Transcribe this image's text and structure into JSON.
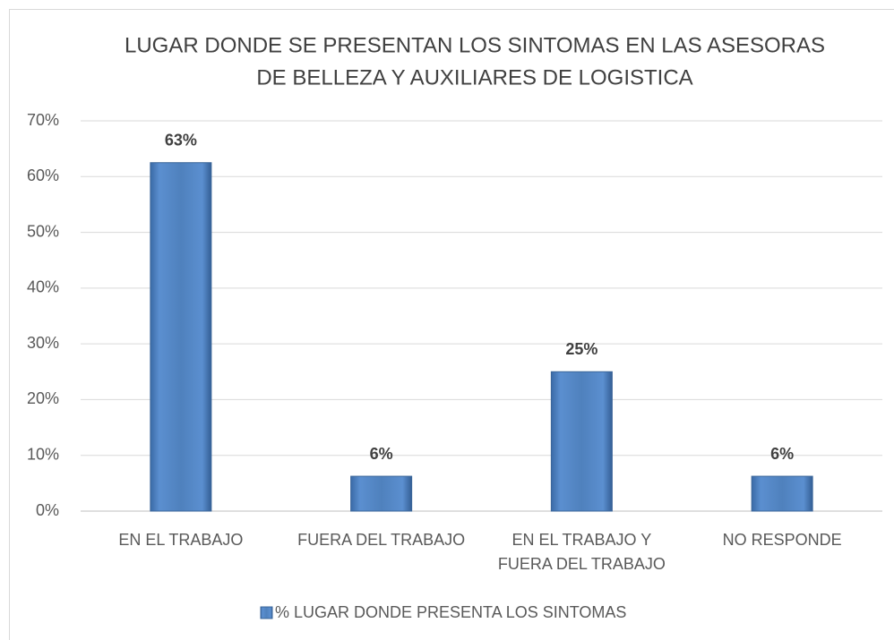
{
  "chart_data": {
    "type": "bar",
    "title": [
      "LUGAR DONDE SE PRESENTAN LOS SINTOMAS EN LAS ASESORAS",
      "DE BELLEZA Y AUXILIARES DE LOGISTICA"
    ],
    "categories": [
      [
        "EN EL TRABAJO"
      ],
      [
        "FUERA DEL TRABAJO"
      ],
      [
        "EN EL TRABAJO Y",
        "FUERA DEL TRABAJO"
      ],
      [
        "NO RESPONDE"
      ]
    ],
    "series": [
      {
        "name": "% LUGAR DONDE PRESENTA LOS SINTOMAS",
        "color": "#4f81bd",
        "values": [
          62.5,
          6.25,
          25,
          6.25
        ],
        "value_labels": [
          "63%",
          "6%",
          "25%",
          "6%"
        ]
      }
    ],
    "ylim": [
      0,
      70
    ],
    "yticks": [
      {
        "value": 0,
        "label": "0%"
      },
      {
        "value": 10,
        "label": "10%"
      },
      {
        "value": 20,
        "label": "20%"
      },
      {
        "value": 30,
        "label": "30%"
      },
      {
        "value": 40,
        "label": "40%"
      },
      {
        "value": 50,
        "label": "50%"
      },
      {
        "value": 60,
        "label": "60%"
      },
      {
        "value": 70,
        "label": "70%"
      }
    ],
    "grid": true,
    "legend": "bottom"
  }
}
